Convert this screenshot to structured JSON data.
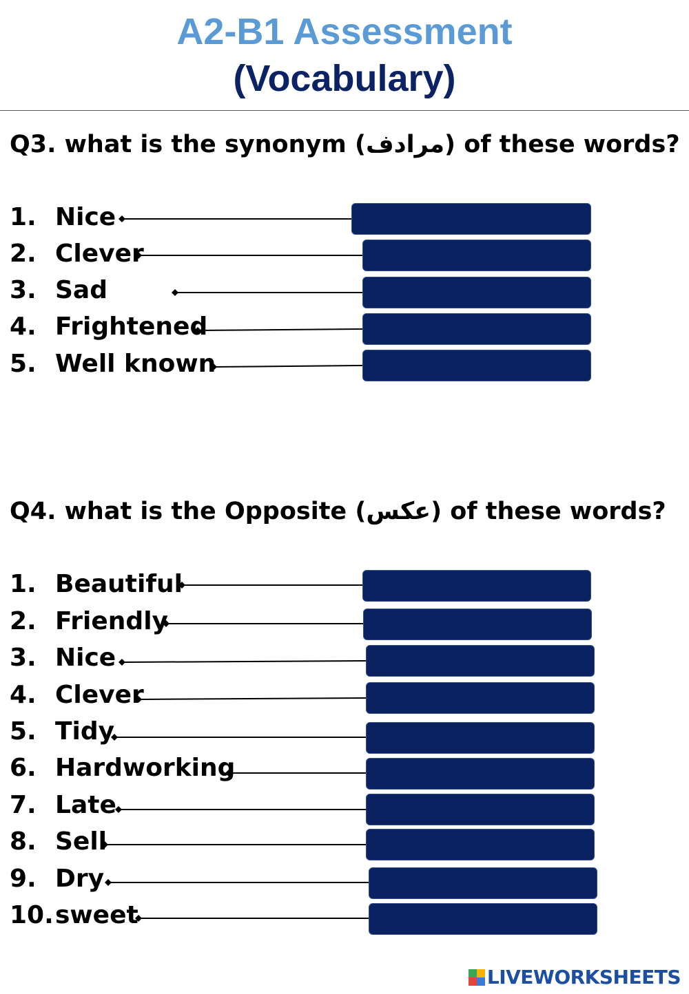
{
  "header": {
    "title_line1": "A2-B1 Assessment",
    "title_line2": "(Vocabulary)"
  },
  "q3": {
    "question": "Q3. what is the synonym (مرادف) of these words?",
    "items": [
      {
        "number": "1.",
        "word": "Nice"
      },
      {
        "number": "2.",
        "word": "Clever"
      },
      {
        "number": "3.",
        "word": "Sad"
      },
      {
        "number": "4.",
        "word": "Frightened"
      },
      {
        "number": "5.",
        "word": "Well known"
      }
    ]
  },
  "q4": {
    "question": "Q4. what is the Opposite (عكس) of these words?",
    "items": [
      {
        "number": "1.",
        "word": "Beautiful"
      },
      {
        "number": "2.",
        "word": "Friendly"
      },
      {
        "number": "3.",
        "word": "Nice"
      },
      {
        "number": "4.",
        "word": "Clever"
      },
      {
        "number": "5.",
        "word": "Tidy"
      },
      {
        "number": "6.",
        "word": "Hardworking"
      },
      {
        "number": "7.",
        "word": "Late"
      },
      {
        "number": "8.",
        "word": "Sell"
      },
      {
        "number": "9.",
        "word": "Dry"
      },
      {
        "number": "10.",
        "word": "sweet"
      }
    ]
  },
  "footer": {
    "brand": "LIVEWORKSHEETS"
  },
  "colors": {
    "title_light": "#5b9bd5",
    "title_dark": "#0b2265",
    "answer_box": "#0b2260",
    "brand": "#1d4fa0"
  }
}
